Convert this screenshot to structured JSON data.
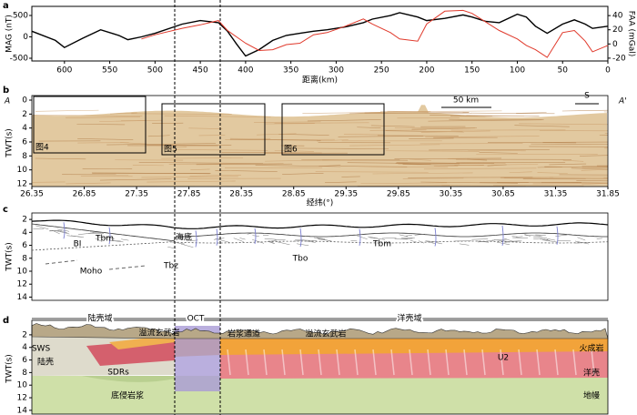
{
  "chart_data": {
    "type": "line",
    "panel_label": "a",
    "xlabel": "距离(km)",
    "ylabel": "MAG (nT)",
    "y2label": "FAA (mGal)",
    "x": [
      636,
      610,
      600,
      580,
      560,
      540,
      530,
      515,
      500,
      470,
      450,
      430,
      420,
      410,
      400,
      385,
      370,
      355,
      340,
      325,
      310,
      290,
      270,
      260,
      240,
      230,
      210,
      200,
      180,
      160,
      150,
      135,
      120,
      100,
      90,
      80,
      67,
      50,
      37,
      25,
      17,
      0
    ],
    "series": [
      {
        "name": "FAA",
        "color": "#000000",
        "axis": "y2",
        "values": [
          18,
          5,
          -5,
          8,
          20,
          12,
          6,
          10,
          15,
          28,
          33,
          30,
          18,
          0,
          -17,
          -8,
          5,
          12,
          15,
          18,
          20,
          24,
          30,
          35,
          40,
          44,
          38,
          33,
          36,
          41,
          38,
          32,
          30,
          42,
          38,
          25,
          15,
          28,
          34,
          28,
          22,
          25
        ]
      },
      {
        "name": "MAG",
        "color": "#e0392b",
        "values": [
          null,
          null,
          null,
          null,
          null,
          null,
          null,
          -50,
          50,
          200,
          280,
          380,
          150,
          0,
          -150,
          -320,
          -300,
          -180,
          -150,
          50,
          100,
          250,
          420,
          300,
          100,
          -50,
          -100,
          300,
          600,
          620,
          550,
          350,
          150,
          -50,
          -200,
          -300,
          -480,
          100,
          150,
          -100,
          -350,
          -200
        ]
      }
    ],
    "xlim": [
      636,
      0
    ],
    "xticks": [
      600,
      550,
      500,
      450,
      400,
      350,
      300,
      250,
      200,
      150,
      100,
      50,
      0
    ],
    "ylim": [
      -564,
      713
    ],
    "yticks": [
      -500,
      0,
      500
    ],
    "y2lim": [
      -24,
      53
    ],
    "y2ticks": [
      -20,
      0,
      20,
      40
    ]
  },
  "panel_b": {
    "label": "b",
    "left_marker": "A",
    "right_marker": "A'",
    "scale_label": "50 km",
    "direction": "S",
    "boxes": [
      "图4",
      "图5",
      "图6"
    ],
    "ylabel": "TWT(s)",
    "ylim": [
      0,
      12
    ],
    "yticks": [
      0,
      2,
      4,
      6,
      8,
      10,
      12
    ],
    "xlabel": "经纬(°)",
    "xlim": [
      26.35,
      31.85
    ],
    "xticks": [
      26.35,
      26.85,
      27.35,
      27.85,
      28.35,
      28.85,
      29.35,
      29.85,
      30.35,
      30.85,
      31.35,
      31.85
    ]
  },
  "panel_c": {
    "label": "c",
    "ylabel": "TWT(s)",
    "ylim": [
      1,
      14.5
    ],
    "yticks": [
      2,
      4,
      6,
      8,
      10,
      12,
      14
    ],
    "annotations": [
      "Tbm",
      "海底",
      "BI",
      "Tbz",
      "Moho",
      "Tbo",
      "Tbm"
    ]
  },
  "panel_d": {
    "label": "d",
    "ylabel": "TWT(s)",
    "ylim": [
      -0.3,
      14.6
    ],
    "yticks": [
      2,
      4,
      6,
      8,
      10,
      12,
      14
    ],
    "domains": [
      "陆壳域",
      "OCT",
      "洋壳域"
    ],
    "annotations": [
      "溢流玄武岩",
      "岩浆通道",
      "溢流玄武岩",
      "SWS",
      "陆壳",
      "SDRs",
      "底侵岩浆",
      "U2",
      "火成岩",
      "洋壳",
      "地幔"
    ]
  }
}
